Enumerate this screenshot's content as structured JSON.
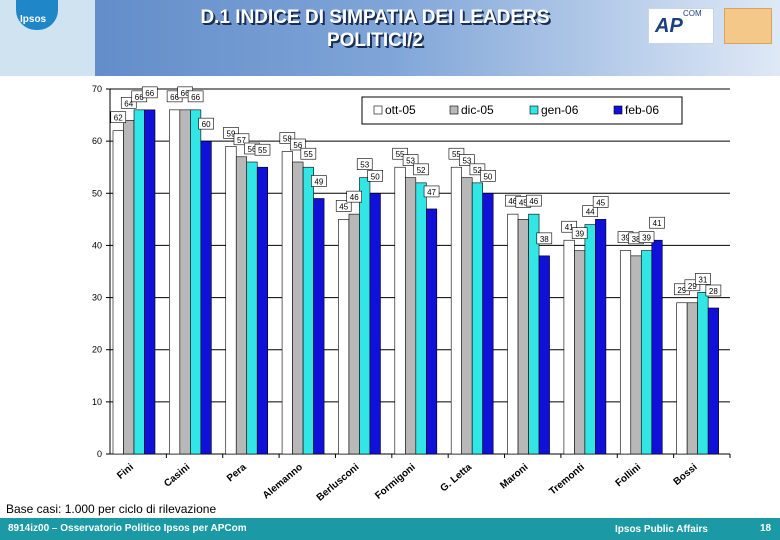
{
  "header": {
    "title_line1": "D.1 INDICE DI SIMPATIA DEI LEADERS",
    "title_line2": "POLITICI/2",
    "logo_left": "Ipsos",
    "logo_apcom_main": "AP",
    "logo_apcom_sup": "COM"
  },
  "chart_data": {
    "type": "bar",
    "categories": [
      "Fini",
      "Casini",
      "Pera",
      "Alemanno",
      "Berlusconi",
      "Formigoni",
      "G. Letta",
      "Maroni",
      "Tremonti",
      "Follini",
      "Bossi"
    ],
    "series": [
      {
        "name": "ott-05",
        "color": "#ffffff",
        "values": [
          62,
          66,
          59,
          58,
          45,
          55,
          55,
          46,
          41,
          39,
          29
        ]
      },
      {
        "name": "dic-05",
        "color": "#b8b8b8",
        "values": [
          64,
          66,
          57,
          56,
          46,
          53,
          53,
          45,
          39,
          38,
          29
        ]
      },
      {
        "name": "gen-06",
        "color": "#33e6e6",
        "values": [
          66,
          66,
          56,
          55,
          53,
          52,
          52,
          46,
          44,
          39,
          31
        ]
      },
      {
        "name": "feb-06",
        "color": "#1010d8",
        "values": [
          66,
          60,
          55,
          49,
          50,
          47,
          50,
          38,
          45,
          41,
          28
        ]
      }
    ],
    "ylim": [
      0,
      70
    ],
    "yticks": [
      0,
      10,
      20,
      30,
      40,
      50,
      60,
      70
    ],
    "grid": true,
    "legend_position": "top-right"
  },
  "notes": {
    "base": "Base casi: 1.000 per ciclo di rilevazione"
  },
  "footer": {
    "left": "8914iz00 – Osservatorio Politico Ipsos per APCom",
    "right": "Ipsos Public Affairs",
    "page": "18"
  },
  "colors": {
    "header_accent": "#5a86c4",
    "footer_bg": "#1b9aa5"
  }
}
